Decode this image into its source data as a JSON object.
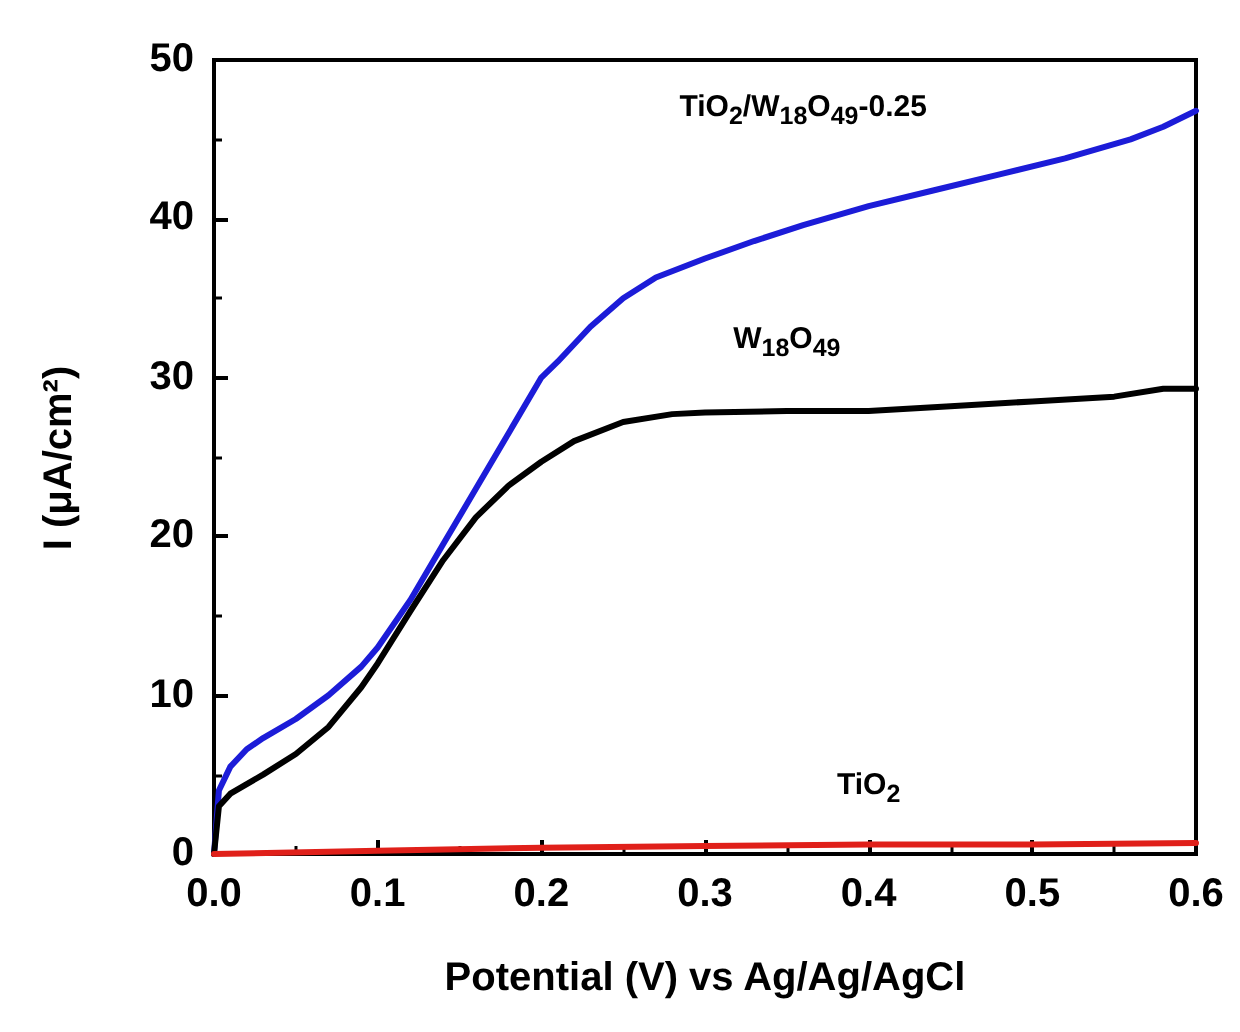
{
  "chart_data": {
    "type": "line",
    "xlabel": "Potential (V) vs Ag/Ag/AgCl",
    "ylabel": "I (μA/cm²)",
    "xlim": [
      0,
      0.6
    ],
    "xticks": [
      {
        "value": 0,
        "label": "0.0"
      },
      0.1,
      0.2,
      0.3,
      0.4,
      0.5,
      0.6
    ],
    "ylim": [
      0,
      50
    ],
    "yticks": [
      0,
      10,
      20,
      30,
      40,
      50
    ],
    "grid": false,
    "marker": "none",
    "line_style": "solid",
    "series": [
      {
        "name": "TiO$_{2}$/W$_{18}$O$_{49}$-0.25",
        "color": "#1c1cd8",
        "x": [
          0,
          0.003,
          0.01,
          0.02,
          0.03,
          0.05,
          0.07,
          0.09,
          0.1,
          0.12,
          0.14,
          0.16,
          0.18,
          0.2,
          0.21,
          0.23,
          0.25,
          0.27,
          0.3,
          0.33,
          0.36,
          0.4,
          0.44,
          0.48,
          0.52,
          0.56,
          0.58,
          0.6
        ],
        "values": [
          0,
          4,
          5.5,
          6.6,
          7.3,
          8.5,
          10,
          11.8,
          13,
          16,
          19.5,
          23,
          26.5,
          30,
          31,
          33.2,
          35,
          36.3,
          37.5,
          38.6,
          39.6,
          40.8,
          41.8,
          42.8,
          43.8,
          45,
          45.8,
          46.8
        ]
      },
      {
        "name": "W$_{18}$O$_{49}$",
        "color": "#000000",
        "x": [
          0,
          0.003,
          0.01,
          0.03,
          0.05,
          0.07,
          0.09,
          0.1,
          0.12,
          0.14,
          0.16,
          0.18,
          0.2,
          0.22,
          0.25,
          0.28,
          0.3,
          0.35,
          0.4,
          0.45,
          0.5,
          0.55,
          0.58,
          0.6
        ],
        "values": [
          0,
          3,
          3.8,
          5,
          6.3,
          8,
          10.5,
          12,
          15.3,
          18.5,
          21.2,
          23.2,
          24.7,
          26,
          27.2,
          27.7,
          27.8,
          27.9,
          27.9,
          28.2,
          28.5,
          28.8,
          29.3,
          29.3
        ]
      },
      {
        "name": "TiO$_{2}$",
        "color": "#e0201a",
        "x": [
          0,
          0.1,
          0.2,
          0.3,
          0.4,
          0.5,
          0.6
        ],
        "values": [
          0,
          0.2,
          0.4,
          0.5,
          0.6,
          0.6,
          0.7
        ]
      }
    ]
  }
}
